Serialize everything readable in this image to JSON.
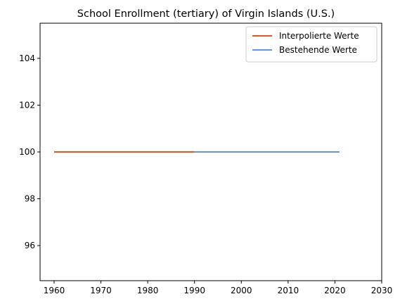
{
  "chart_data": {
    "type": "line",
    "title": "School Enrollment (tertiary) of Virgin Islands (U.S.)",
    "xlabel": "",
    "ylabel": "",
    "xlim": [
      1957,
      2030
    ],
    "ylim": [
      94.5,
      105.5
    ],
    "xticks": [
      1960,
      1970,
      1980,
      1990,
      2000,
      2010,
      2020,
      2030
    ],
    "yticks": [
      96,
      98,
      100,
      102,
      104
    ],
    "grid": false,
    "legend_position": "top-right",
    "series": [
      {
        "name": "Interpolierte Werte",
        "color": "#e8531f",
        "x": [
          1960,
          1990,
          2021,
          2022
        ],
        "y": [
          100,
          100,
          null,
          100
        ]
      },
      {
        "name": "Bestehende Werte",
        "color": "#6495ed",
        "x": [
          1990,
          2021
        ],
        "y": [
          100,
          100
        ]
      }
    ]
  }
}
